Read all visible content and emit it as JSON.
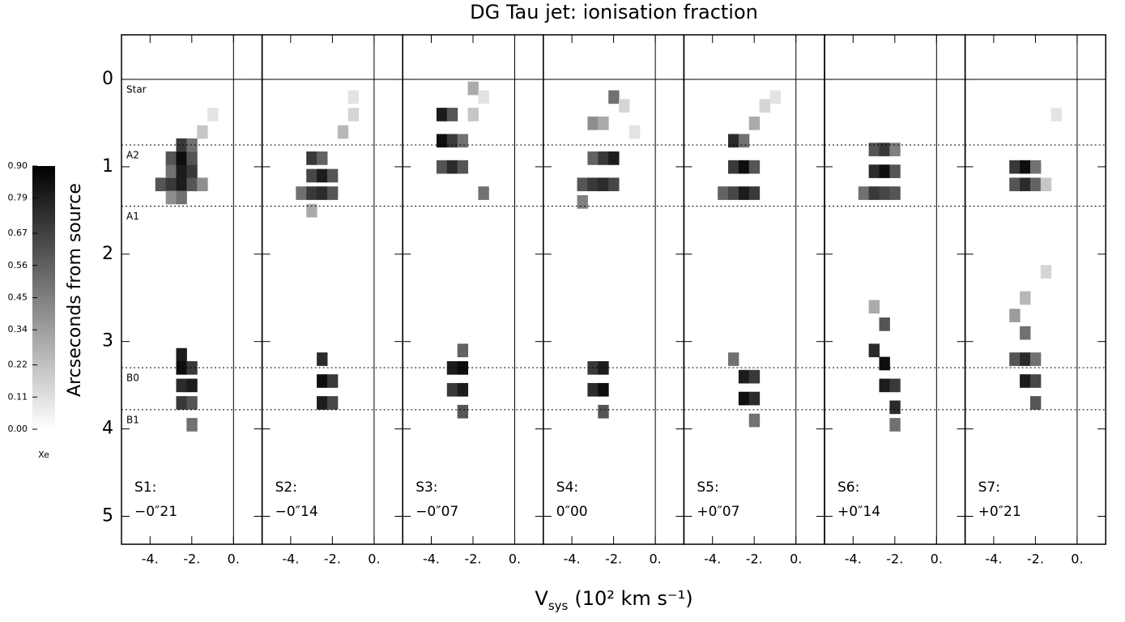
{
  "chart_data": {
    "type": "heatmap-panels",
    "title": "DG Tau jet: ionisation fraction",
    "ylabel": "Arcseconds from source",
    "xlabel": {
      "main": "V",
      "sub": "sys",
      "rest": "(10² km s⁻¹)"
    },
    "xlim": [
      -5.37,
      1.37
    ],
    "xticks": [
      {
        "value": -4,
        "label": "-4."
      },
      {
        "value": -2,
        "label": "-2."
      },
      {
        "value": 0,
        "label": "0."
      }
    ],
    "ylim": [
      5.32,
      -0.51
    ],
    "yticks": [
      0,
      1,
      2,
      3,
      4,
      5
    ],
    "zero_line": 0,
    "reference_lines": {
      "values": [
        0,
        0.75,
        1.45,
        3.3,
        3.78
      ],
      "labels": [
        "Star",
        "A2",
        "A1",
        "B0",
        "B1"
      ]
    },
    "colorbar": {
      "label": "Xe",
      "lim": [
        0,
        0.9
      ],
      "ticks": [
        {
          "value": 0,
          "label": "0.00"
        },
        {
          "value": 0.11,
          "label": "0.11"
        },
        {
          "value": 0.22,
          "label": "0.22"
        },
        {
          "value": 0.34,
          "label": "0.34"
        },
        {
          "value": 0.45,
          "label": "0.45"
        },
        {
          "value": 0.56,
          "label": "0.56"
        },
        {
          "value": 0.67,
          "label": "0.67"
        },
        {
          "value": 0.79,
          "label": "0.79"
        },
        {
          "value": 0.9,
          "label": "0.90"
        }
      ]
    },
    "panels": [
      {
        "label": "S1:",
        "offset": "−0″21",
        "x": [
          -3.5,
          -3,
          -2.5,
          -2,
          -1.5,
          -3,
          -2.5,
          -2,
          -3,
          -2.5,
          -2,
          -2.5,
          -2,
          -1.5,
          -1,
          -3,
          -2.5,
          -2.5,
          -2.5,
          -2,
          -2.5,
          -2,
          -2.5,
          -2,
          -2
        ],
        "y": [
          1.2,
          1.2,
          1.2,
          1.2,
          1.2,
          1.05,
          1.05,
          1.05,
          0.9,
          0.9,
          0.9,
          0.75,
          0.75,
          0.6,
          0.4,
          1.35,
          1.35,
          3.15,
          3.3,
          3.3,
          3.5,
          3.5,
          3.7,
          3.7,
          3.95
        ],
        "xe": [
          0.6,
          0.7,
          0.8,
          0.6,
          0.4,
          0.5,
          0.8,
          0.7,
          0.6,
          0.85,
          0.6,
          0.7,
          0.5,
          0.2,
          0.1,
          0.4,
          0.5,
          0.8,
          0.85,
          0.7,
          0.75,
          0.8,
          0.7,
          0.6,
          0.5
        ]
      },
      {
        "label": "S2:",
        "offset": "−0″14",
        "x": [
          -3.5,
          -3,
          -2.5,
          -2,
          -3,
          -2.5,
          -2,
          -3,
          -2.5,
          -1.5,
          -1,
          -1,
          -3,
          -2.5,
          -2.5,
          -2,
          -2.5,
          -2
        ],
        "y": [
          1.3,
          1.3,
          1.3,
          1.3,
          1.1,
          1.1,
          1.1,
          0.9,
          0.9,
          0.6,
          0.4,
          0.2,
          1.5,
          3.2,
          3.45,
          3.45,
          3.7,
          3.7
        ],
        "xe": [
          0.5,
          0.7,
          0.75,
          0.6,
          0.65,
          0.8,
          0.6,
          0.7,
          0.55,
          0.25,
          0.15,
          0.1,
          0.3,
          0.75,
          0.85,
          0.7,
          0.8,
          0.65
        ]
      },
      {
        "label": "S3:",
        "offset": "−0″07",
        "x": [
          -3.5,
          -3,
          -3.5,
          -3,
          -2.5,
          -3.5,
          -3,
          -2.5,
          -2,
          -2,
          -1.5,
          -1.5,
          -3,
          -2.5,
          -3,
          -2.5,
          -2.5,
          -2.5
        ],
        "y": [
          0.4,
          0.4,
          0.7,
          0.7,
          0.7,
          1.0,
          1.0,
          1.0,
          0.1,
          0.4,
          0.2,
          1.3,
          3.3,
          3.3,
          3.55,
          3.55,
          3.8,
          3.1
        ],
        "xe": [
          0.8,
          0.6,
          0.85,
          0.7,
          0.5,
          0.6,
          0.75,
          0.6,
          0.3,
          0.2,
          0.1,
          0.5,
          0.8,
          0.85,
          0.7,
          0.8,
          0.6,
          0.55
        ]
      },
      {
        "label": "S4:",
        "offset": "0″00",
        "x": [
          -3.5,
          -3,
          -2.5,
          -2,
          -3,
          -2.5,
          -2,
          -3,
          -2.5,
          -2,
          -1.5,
          -1,
          -3.5,
          -3,
          -2.5,
          -3,
          -2.5,
          -2.5
        ],
        "y": [
          1.2,
          1.2,
          1.2,
          1.2,
          0.9,
          0.9,
          0.9,
          0.5,
          0.5,
          0.2,
          0.3,
          0.6,
          1.4,
          3.3,
          3.3,
          3.55,
          3.55,
          3.8
        ],
        "xe": [
          0.6,
          0.7,
          0.75,
          0.65,
          0.55,
          0.7,
          0.8,
          0.4,
          0.3,
          0.5,
          0.15,
          0.1,
          0.45,
          0.7,
          0.8,
          0.75,
          0.85,
          0.6
        ]
      },
      {
        "label": "S5:",
        "offset": "+0″07",
        "x": [
          -3.5,
          -3,
          -2.5,
          -2,
          -3,
          -2.5,
          -2,
          -3,
          -2.5,
          -2,
          -1.5,
          -1,
          -3,
          -2.5,
          -2,
          -2.5,
          -2,
          -2
        ],
        "y": [
          1.3,
          1.3,
          1.3,
          1.3,
          1.0,
          1.0,
          1.0,
          0.7,
          0.7,
          0.5,
          0.3,
          0.2,
          3.2,
          3.4,
          3.4,
          3.65,
          3.65,
          3.9
        ],
        "xe": [
          0.55,
          0.65,
          0.8,
          0.7,
          0.7,
          0.85,
          0.6,
          0.75,
          0.5,
          0.3,
          0.15,
          0.1,
          0.5,
          0.8,
          0.7,
          0.85,
          0.75,
          0.5
        ]
      },
      {
        "label": "S6:",
        "offset": "+0″14",
        "x": [
          -3.5,
          -3,
          -2.5,
          -2,
          -3,
          -2.5,
          -2,
          -3,
          -2.5,
          -2,
          -3,
          -2.5,
          -3,
          -2.5,
          -2.5,
          -2,
          -2,
          -2
        ],
        "y": [
          1.3,
          1.3,
          1.3,
          1.3,
          1.05,
          1.05,
          1.05,
          0.8,
          0.8,
          0.8,
          2.6,
          2.8,
          3.1,
          3.25,
          3.5,
          3.5,
          3.75,
          3.95
        ],
        "xe": [
          0.5,
          0.7,
          0.65,
          0.6,
          0.75,
          0.85,
          0.6,
          0.6,
          0.7,
          0.45,
          0.3,
          0.6,
          0.75,
          0.85,
          0.8,
          0.7,
          0.75,
          0.5
        ]
      },
      {
        "label": "S7:",
        "offset": "+0″21",
        "x": [
          -3,
          -2.5,
          -2,
          -3,
          -2.5,
          -2,
          -1.5,
          -1,
          -3,
          -2.5,
          -3,
          -2.5,
          -2,
          -2.5,
          -2,
          -2,
          -1.5,
          -2.5
        ],
        "y": [
          1.0,
          1.0,
          1.0,
          1.2,
          1.2,
          1.2,
          1.2,
          0.4,
          2.7,
          2.9,
          3.2,
          3.2,
          3.2,
          3.45,
          3.45,
          3.7,
          2.2,
          2.5
        ],
        "xe": [
          0.7,
          0.85,
          0.5,
          0.6,
          0.75,
          0.55,
          0.2,
          0.1,
          0.35,
          0.5,
          0.6,
          0.75,
          0.5,
          0.8,
          0.65,
          0.6,
          0.15,
          0.25
        ]
      }
    ]
  }
}
